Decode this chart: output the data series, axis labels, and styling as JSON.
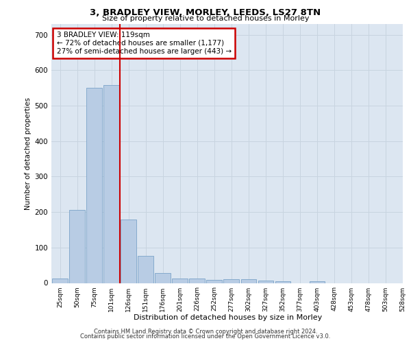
{
  "title1": "3, BRADLEY VIEW, MORLEY, LEEDS, LS27 8TN",
  "title2": "Size of property relative to detached houses in Morley",
  "xlabel": "Distribution of detached houses by size in Morley",
  "ylabel": "Number of detached properties",
  "bar_values": [
    13,
    205,
    551,
    557,
    178,
    77,
    28,
    12,
    12,
    8,
    10,
    10,
    6,
    4,
    0,
    5,
    0,
    0,
    0,
    0
  ],
  "categories": [
    "25sqm",
    "50sqm",
    "75sqm",
    "101sqm",
    "126sqm",
    "151sqm",
    "176sqm",
    "201sqm",
    "226sqm",
    "252sqm",
    "277sqm",
    "302sqm",
    "327sqm",
    "352sqm",
    "377sqm",
    "403sqm",
    "428sqm",
    "453sqm",
    "478sqm",
    "503sqm",
    "528sqm"
  ],
  "bar_color": "#b8cce4",
  "bar_edge_color": "#7ba3c8",
  "grid_color": "#c8d4e0",
  "background_color": "#dce6f1",
  "marker_line_color": "#cc0000",
  "marker_label": "3 BRADLEY VIEW: 119sqm",
  "annotation_line1": "← 72% of detached houses are smaller (1,177)",
  "annotation_line2": "27% of semi-detached houses are larger (443) →",
  "annotation_box_color": "#ffffff",
  "annotation_box_edge": "#cc0000",
  "ylim": [
    0,
    730
  ],
  "yticks": [
    0,
    100,
    200,
    300,
    400,
    500,
    600,
    700
  ],
  "footer1": "Contains HM Land Registry data © Crown copyright and database right 2024.",
  "footer2": "Contains public sector information licensed under the Open Government Licence v3.0."
}
